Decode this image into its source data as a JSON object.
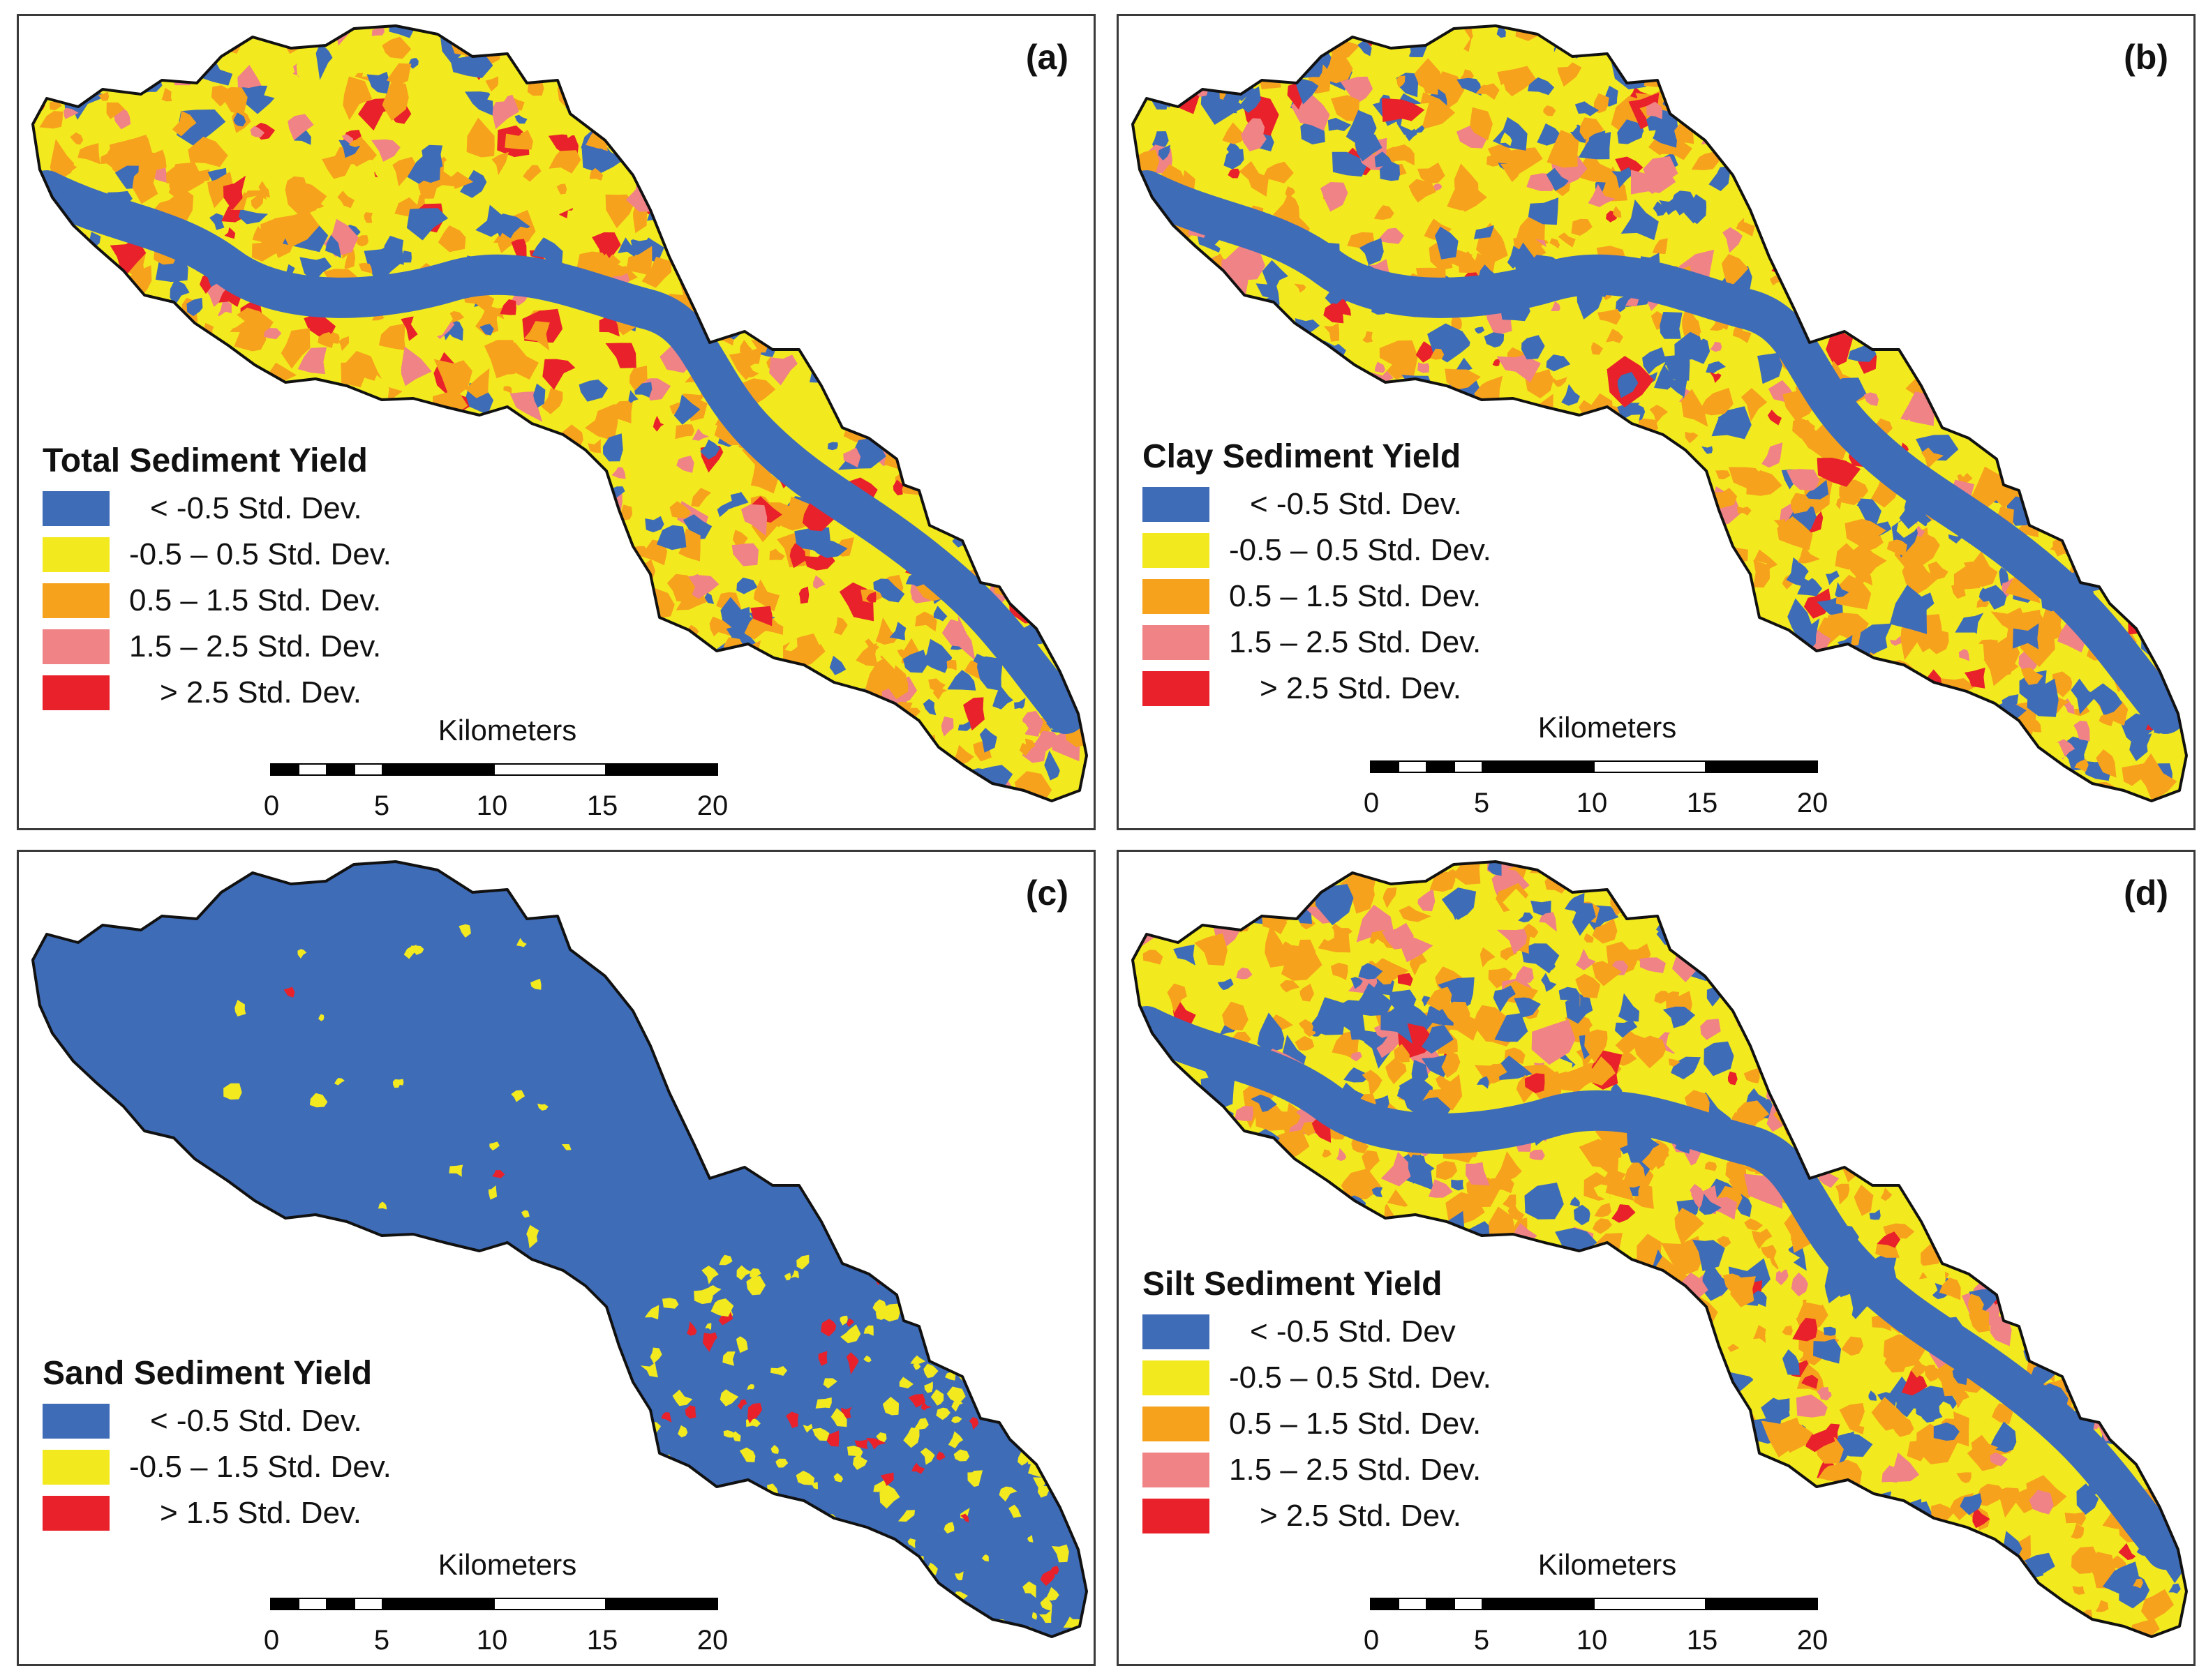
{
  "colors": {
    "blue": "#3f6cb7",
    "yellow": "#f2ea1f",
    "orange": "#f7a21c",
    "pink": "#f08385",
    "red": "#e8212a",
    "outline": "#111111"
  },
  "scalebar": {
    "unit": "Kilometers",
    "ticks": [
      "0",
      "5",
      "10",
      "15",
      "20"
    ]
  },
  "panels": [
    {
      "label": "(a)",
      "legend_title": "Total Sediment Yield",
      "classes": [
        {
          "label": "< -0.5 Std. Dev.",
          "color": "#3f6cb7"
        },
        {
          "label": "-0.5 – 0.5 Std. Dev.",
          "color": "#f2ea1f"
        },
        {
          "label": "0.5 – 1.5 Std. Dev.",
          "color": "#f7a21c"
        },
        {
          "label": "1.5 – 2.5 Std. Dev.",
          "color": "#f08385"
        },
        {
          "label": "> 2.5 Std. Dev.",
          "color": "#e8212a"
        }
      ]
    },
    {
      "label": "(b)",
      "legend_title": "Clay Sediment Yield",
      "classes": [
        {
          "label": "< -0.5 Std. Dev.",
          "color": "#3f6cb7"
        },
        {
          "label": "-0.5 – 0.5 Std. Dev.",
          "color": "#f2ea1f"
        },
        {
          "label": "0.5 – 1.5 Std. Dev.",
          "color": "#f7a21c"
        },
        {
          "label": "1.5 – 2.5 Std. Dev.",
          "color": "#f08385"
        },
        {
          "label": "> 2.5 Std. Dev.",
          "color": "#e8212a"
        }
      ]
    },
    {
      "label": "(c)",
      "legend_title": "Sand Sediment Yield",
      "classes": [
        {
          "label": "< -0.5 Std. Dev.",
          "color": "#3f6cb7"
        },
        {
          "label": "-0.5 – 1.5 Std. Dev.",
          "color": "#f2ea1f"
        },
        {
          "label": "> 1.5 Std. Dev.",
          "color": "#e8212a"
        }
      ]
    },
    {
      "label": "(d)",
      "legend_title": "Silt Sediment Yield",
      "classes": [
        {
          "label": "< -0.5 Std. Dev",
          "color": "#3f6cb7"
        },
        {
          "label": "-0.5 – 0.5 Std. Dev.",
          "color": "#f2ea1f"
        },
        {
          "label": "0.5 – 1.5 Std. Dev.",
          "color": "#f7a21c"
        },
        {
          "label": "1.5 – 2.5 Std. Dev.",
          "color": "#f08385"
        },
        {
          "label": "> 2.5 Std. Dev.",
          "color": "#e8212a"
        }
      ]
    }
  ]
}
